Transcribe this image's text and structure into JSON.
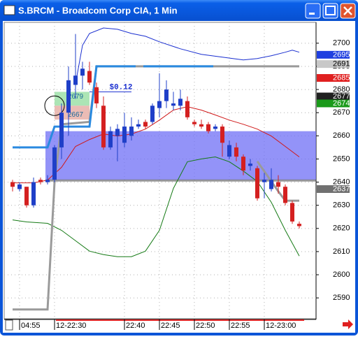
{
  "chart_data": {
    "type": "candlestick",
    "title": "S.BRCM - Broadcom Corp CIA, 1 Min",
    "x": [
      0,
      1,
      2,
      3,
      4,
      5,
      6,
      7,
      8,
      9,
      10,
      11,
      12,
      13,
      14,
      15,
      16,
      17,
      18,
      19,
      20,
      21,
      22,
      23,
      24,
      25,
      26,
      27,
      28,
      29,
      30,
      31,
      32,
      33,
      34,
      35,
      36,
      37,
      38,
      39,
      40,
      41
    ],
    "open": [
      2640,
      2637,
      2638,
      2630,
      2641,
      2640,
      2641,
      2655,
      2670,
      2682,
      2686,
      2688,
      2681,
      2673,
      2655,
      2660,
      2657,
      2660,
      2664,
      2666,
      2666,
      2672,
      2675,
      2673,
      2673,
      2675,
      2666,
      2665,
      2665,
      2663,
      2664,
      2651,
      2655,
      2651,
      2647,
      2646,
      2640,
      2637,
      2640,
      2638,
      2631,
      2622
    ],
    "high": [
      2641,
      2640,
      2638,
      2642,
      2642,
      2643,
      2656,
      2674,
      2690,
      2704,
      2692,
      2692,
      2683,
      2677,
      2664,
      2665,
      2670,
      2668,
      2667,
      2667,
      2674,
      2687,
      2684,
      2679,
      2680,
      2677,
      2667,
      2667,
      2666,
      2665,
      2665,
      2658,
      2657,
      2652,
      2650,
      2647,
      2644,
      2646,
      2643,
      2639,
      2632,
      2623
    ],
    "low": [
      2636,
      2636,
      2629,
      2629,
      2639,
      2639,
      2640,
      2650,
      2660,
      2676,
      2680,
      2682,
      2672,
      2654,
      2654,
      2649,
      2655,
      2658,
      2663,
      2663,
      2665,
      2668,
      2672,
      2671,
      2671,
      2667,
      2664,
      2663,
      2661,
      2662,
      2651,
      2650,
      2649,
      2643,
      2645,
      2632,
      2633,
      2636,
      2635,
      2630,
      2622,
      2620
    ],
    "close": [
      2638,
      2639,
      2630,
      2640,
      2640,
      2641,
      2655,
      2670,
      2684,
      2686,
      2689,
      2683,
      2674,
      2655,
      2662,
      2663,
      2664,
      2664,
      2665,
      2664,
      2673,
      2675,
      2680,
      2674,
      2676,
      2668,
      2665,
      2664,
      2662,
      2664,
      2657,
      2656,
      2651,
      2645,
      2648,
      2633,
      2641,
      2641,
      2638,
      2631,
      2623,
      2621
    ],
    "up_color": "#1f3fc8",
    "down_color": "#d42020",
    "xlim": [
      -1,
      43.2
    ],
    "ylim": [
      2581,
      2709
    ],
    "yticks": [
      2590,
      2600,
      2610,
      2620,
      2630,
      2640,
      2650,
      2660,
      2670,
      2680,
      2690,
      2700
    ],
    "xticks": [
      {
        "value": 1,
        "label": "04:55"
      },
      {
        "value": 6,
        "label": "12-22:30"
      },
      {
        "value": 16,
        "label": "22:40"
      },
      {
        "value": 21,
        "label": "22:45"
      },
      {
        "value": 26,
        "label": "22:50"
      },
      {
        "value": 31,
        "label": "22:55"
      },
      {
        "value": 36,
        "label": "12-23:00"
      }
    ],
    "grid": true,
    "overlays": [
      {
        "color": "#1a2fd0",
        "style": "thin",
        "x": [
          9,
          10,
          11,
          13,
          15,
          17,
          19,
          21,
          24,
          27,
          30,
          33,
          35,
          37,
          39,
          40,
          41
        ],
        "values": [
          2682.5,
          2699.1,
          2704.2,
          2706.6,
          2706,
          2704.2,
          2703,
          2700.6,
          2697.6,
          2695.2,
          2694,
          2692.8,
          2693.4,
          2694.6,
          2696.1,
          2697,
          2696.1
        ]
      },
      {
        "color": "#d01818",
        "style": "thin",
        "x": [
          0,
          3,
          5,
          7,
          9,
          11,
          13,
          15,
          17,
          19,
          21,
          23,
          25,
          27,
          29,
          31,
          33,
          35,
          37,
          39,
          41
        ],
        "values": [
          2639.7,
          2639.7,
          2640.9,
          2646.4,
          2655.4,
          2658.4,
          2660.8,
          2659.9,
          2660.8,
          2662.9,
          2666.8,
          2671.1,
          2672.6,
          2671.1,
          2669,
          2666.8,
          2665,
          2662.9,
          2659.9,
          2655.4,
          2650.9
        ]
      },
      {
        "color": "#157a15",
        "style": "thin",
        "x": [
          0,
          2,
          5,
          7,
          9,
          11,
          13,
          15,
          17,
          19,
          21,
          23,
          25,
          27,
          29,
          31,
          33,
          35,
          37,
          39,
          41
        ],
        "values": [
          2623.7,
          2622.8,
          2622.2,
          2619.2,
          2614.7,
          2610.2,
          2608.7,
          2607.8,
          2607.8,
          2610.2,
          2619.2,
          2637.3,
          2648.8,
          2650,
          2650.9,
          2648.8,
          2644.8,
          2640.3,
          2631.3,
          2619.2,
          2608.1
        ]
      },
      {
        "color": "#9a9a9a",
        "style": "thick",
        "x": [
          0,
          5,
          6,
          7,
          11,
          12,
          41
        ],
        "values": [
          2585,
          2585,
          2640,
          2665,
          2666,
          2690,
          2690
        ]
      },
      {
        "color": "#9a9a9a",
        "style": "thick",
        "x": [
          35,
          38,
          39,
          41
        ],
        "values": [
          2649,
          2636,
          2632,
          2632
        ]
      },
      {
        "color": "#2a8ae0",
        "style": "thick",
        "x": [
          0,
          5,
          6,
          11,
          12,
          15,
          17.6,
          null,
          18.7,
          28.7
        ],
        "values": [
          2655,
          2655,
          2664,
          2664,
          2690,
          2690,
          2690,
          null,
          2690,
          2690
        ]
      }
    ],
    "zone": {
      "x_from": 4.7,
      "low": 2641,
      "high": 2662,
      "color": "#6f6ff5"
    },
    "measure": {
      "x_from": 6,
      "x_to": 11,
      "line_to": 17,
      "high": 2679,
      "low": 2667,
      "label": "$0.12"
    },
    "price_boxes": [
      {
        "value": 2695,
        "color": "#1f3fe0",
        "text_color": "#ffffff"
      },
      {
        "value": 2691,
        "color": "#c8c8c8",
        "text_color": "#000000"
      },
      {
        "value": 2685,
        "color": "#e02020",
        "text_color": "#ffffff"
      },
      {
        "value": 2677,
        "color": "#202020",
        "text_color": "#ffffff"
      },
      {
        "value": 2674,
        "color": "#1a9a1a",
        "text_color": "#ffffff"
      },
      {
        "value": 2637,
        "color": "#707070",
        "text_color": "#ffffff"
      }
    ]
  }
}
